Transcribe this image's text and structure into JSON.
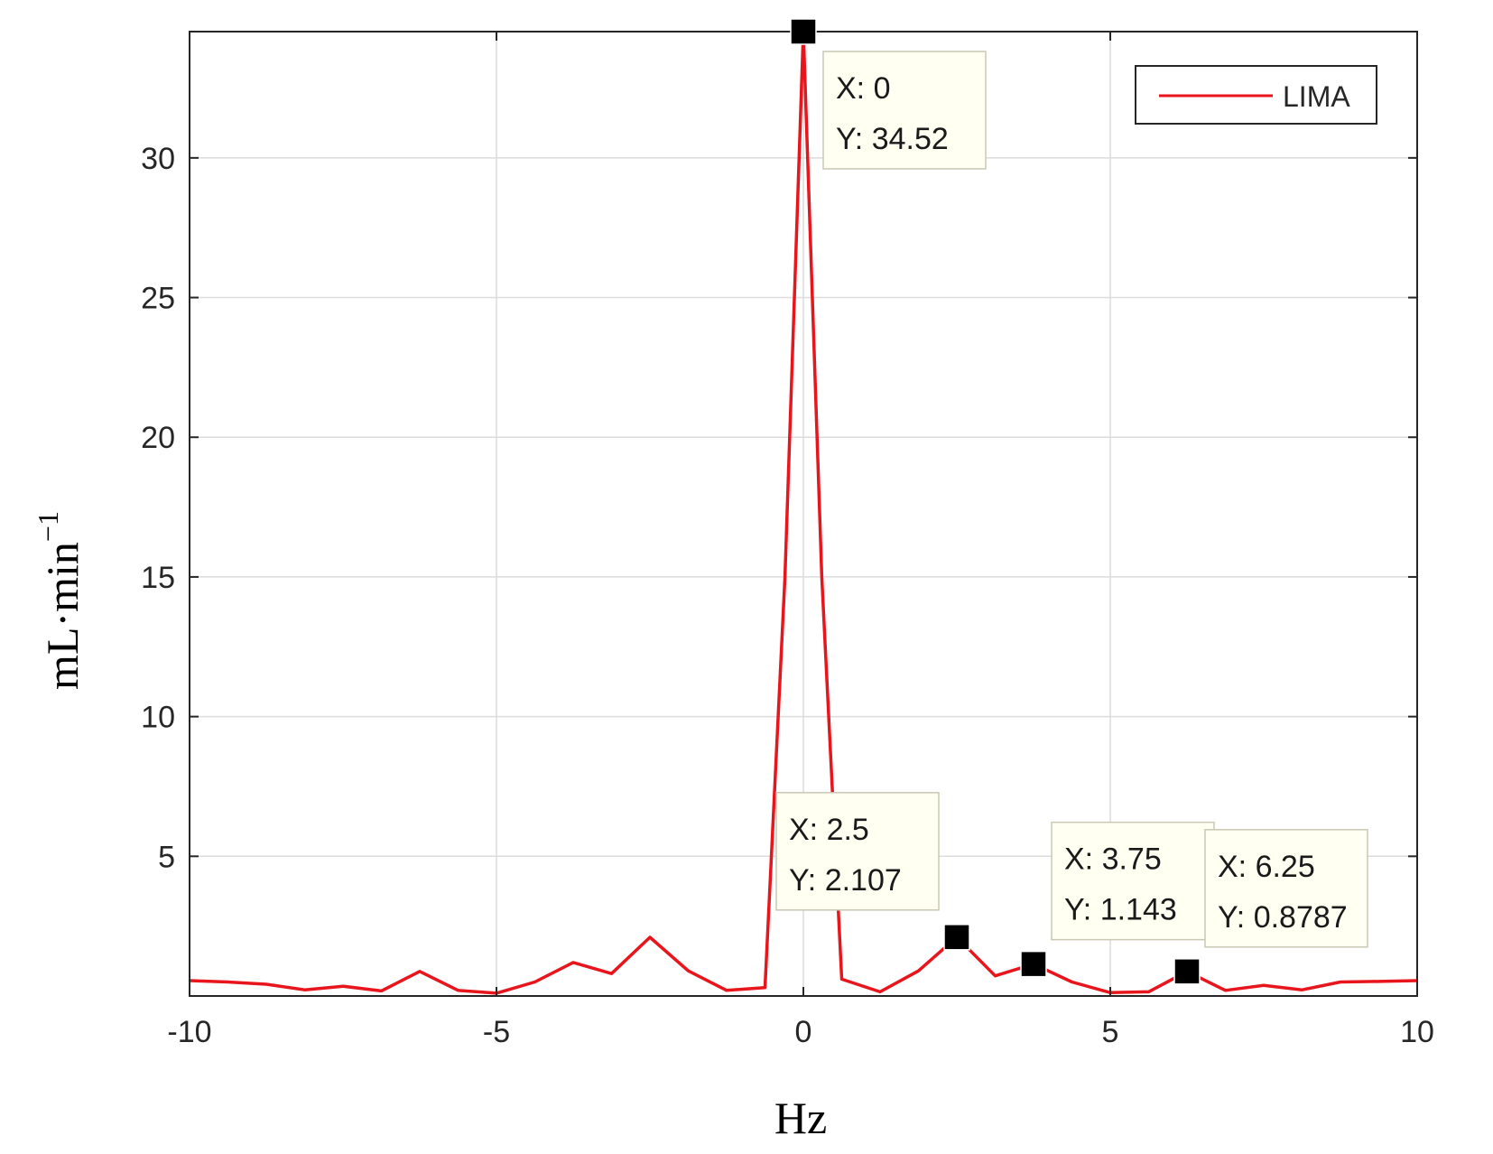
{
  "chart_data": {
    "type": "line",
    "title": "",
    "xlabel": "Hz",
    "ylabel_main": "mL·min",
    "ylabel_exp": "−1",
    "xlim": [
      -10,
      10
    ],
    "ylim": [
      0,
      34.52
    ],
    "xticks": [
      -10,
      -5,
      0,
      5,
      10
    ],
    "xtick_labels": [
      "-10",
      "-5",
      "0",
      "5",
      "10"
    ],
    "yticks": [
      5,
      10,
      15,
      20,
      25,
      30
    ],
    "ytick_labels": [
      "5",
      "10",
      "15",
      "20",
      "25",
      "30"
    ],
    "grid": true,
    "legend_position": "top-right",
    "series": [
      {
        "name": "LIMA",
        "color": "#e8161c",
        "x": [
          -10,
          -9.375,
          -8.75,
          -8.125,
          -7.5,
          -6.875,
          -6.25,
          -5.625,
          -5,
          -4.375,
          -3.75,
          -3.125,
          -2.5,
          -1.875,
          -1.25,
          -0.625,
          -0.3,
          0,
          0.3,
          0.625,
          1.25,
          1.875,
          2.5,
          3.125,
          3.75,
          4.375,
          5,
          5.625,
          6.25,
          6.875,
          7.5,
          8.125,
          8.75,
          9.375,
          10
        ],
        "y": [
          0.55,
          0.5,
          0.42,
          0.22,
          0.35,
          0.18,
          0.88,
          0.2,
          0.1,
          0.5,
          1.2,
          0.8,
          2.1,
          0.9,
          0.2,
          0.3,
          15.0,
          34.52,
          15.0,
          0.6,
          0.15,
          0.9,
          2.107,
          0.72,
          1.143,
          0.5,
          0.12,
          0.15,
          0.8787,
          0.2,
          0.38,
          0.22,
          0.5,
          0.52,
          0.55
        ]
      }
    ],
    "datatips": [
      {
        "x_value": 0,
        "y_value": 34.52,
        "x_text": "X: 0",
        "y_text": "Y: 34.52",
        "box": "right"
      },
      {
        "x_value": 2.5,
        "y_value": 2.107,
        "x_text": "X: 2.5",
        "y_text": "Y: 2.107",
        "box": "upper-left"
      },
      {
        "x_value": 3.75,
        "y_value": 1.143,
        "x_text": "X: 3.75",
        "y_text": "Y: 1.143",
        "box": "upper-right"
      },
      {
        "x_value": 6.25,
        "y_value": 0.8787,
        "x_text": "X: 6.25",
        "y_text": "Y: 0.8787",
        "box": "upper-right"
      }
    ],
    "colors": {
      "line": "#e8161c",
      "grid": "#dcdcdc",
      "axes": "#262626",
      "tip_fill": "#fffff2",
      "tip_border": "#c8c8b4",
      "marker": "#000000"
    }
  }
}
